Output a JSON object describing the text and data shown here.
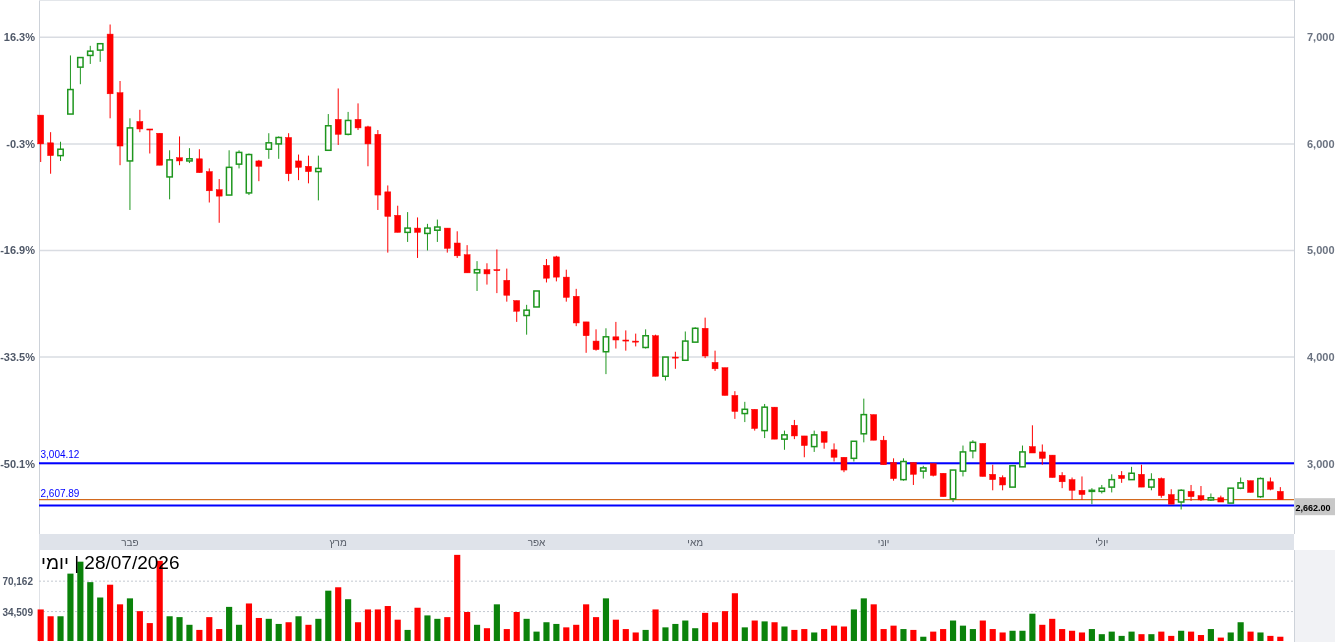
{
  "chart_data": [
    {
      "type": "candlestick",
      "categories": [
        null,
        null,
        null,
        null,
        null,
        null,
        null,
        null,
        null,
        "פבר",
        null,
        null,
        null,
        null,
        null,
        null,
        null,
        null,
        null,
        null,
        null,
        null,
        null,
        null,
        null,
        null,
        null,
        null,
        null,
        null,
        "מרץ",
        null,
        null,
        null,
        null,
        null,
        null,
        null,
        null,
        null,
        null,
        null,
        null,
        null,
        null,
        null,
        null,
        null,
        null,
        null,
        "אפר",
        null,
        null,
        null,
        null,
        null,
        null,
        null,
        null,
        null,
        null,
        null,
        null,
        null,
        null,
        null,
        "מאי",
        null,
        null,
        null,
        null,
        null,
        null,
        null,
        null,
        null,
        null,
        null,
        null,
        null,
        null,
        null,
        null,
        null,
        null,
        "יוני",
        null,
        null,
        null,
        null,
        null,
        null,
        null,
        null,
        null,
        null,
        null,
        null,
        null,
        null,
        null,
        null,
        null,
        null,
        null,
        null,
        null,
        "יולי",
        null,
        null,
        null,
        null,
        null,
        null,
        null,
        null,
        null,
        null,
        null,
        null,
        null,
        null,
        null,
        null,
        null,
        null
      ],
      "ohlc": [
        [
          6270,
          6270,
          5830,
          6000
        ],
        [
          6010,
          6110,
          5720,
          5890
        ],
        [
          5890,
          6020,
          5840,
          5950
        ],
        [
          6280,
          6830,
          6280,
          6510
        ],
        [
          6720,
          6810,
          6560,
          6810
        ],
        [
          6830,
          6920,
          6750,
          6870
        ],
        [
          6880,
          6940,
          6770,
          6940
        ],
        [
          7030,
          7120,
          6240,
          6470
        ],
        [
          6480,
          6590,
          5800,
          5980
        ],
        [
          5840,
          6240,
          5380,
          6150
        ],
        [
          6210,
          6320,
          6110,
          6140
        ],
        [
          6140,
          6140,
          5910,
          6130
        ],
        [
          6100,
          6100,
          5800,
          5800
        ],
        [
          5690,
          5940,
          5480,
          5850
        ],
        [
          5870,
          6070,
          5800,
          5840
        ],
        [
          5840,
          5960,
          5820,
          5860
        ],
        [
          5860,
          5950,
          5730,
          5730
        ],
        [
          5740,
          5770,
          5450,
          5560
        ],
        [
          5570,
          5670,
          5260,
          5510
        ],
        [
          5520,
          5940,
          5520,
          5780
        ],
        [
          5810,
          5940,
          5770,
          5920
        ],
        [
          5540,
          5910,
          5520,
          5900
        ],
        [
          5840,
          5850,
          5650,
          5790
        ],
        [
          5950,
          6100,
          5860,
          6010
        ],
        [
          6000,
          6070,
          5860,
          6060
        ],
        [
          6060,
          6100,
          5650,
          5720
        ],
        [
          5840,
          5900,
          5660,
          5780
        ],
        [
          5790,
          5890,
          5630,
          5740
        ],
        [
          5740,
          5890,
          5470,
          5770
        ],
        [
          5940,
          6280,
          5940,
          6170
        ],
        [
          6230,
          6520,
          5990,
          6090
        ],
        [
          6090,
          6300,
          6080,
          6220
        ],
        [
          6230,
          6380,
          6130,
          6150
        ],
        [
          6160,
          6170,
          5790,
          6000
        ],
        [
          6090,
          6130,
          5380,
          5520
        ],
        [
          5550,
          5610,
          4980,
          5320
        ],
        [
          5330,
          5420,
          5170,
          5170
        ],
        [
          5170,
          5360,
          5080,
          5210
        ],
        [
          5210,
          5310,
          4930,
          5170
        ],
        [
          5160,
          5250,
          5000,
          5210
        ],
        [
          5190,
          5290,
          5080,
          5220
        ],
        [
          5210,
          5210,
          4980,
          5020
        ],
        [
          5070,
          5180,
          4930,
          4950
        ],
        [
          4960,
          5050,
          4790,
          4790
        ],
        [
          4790,
          4900,
          4620,
          4820
        ],
        [
          4820,
          4880,
          4680,
          4780
        ],
        [
          4820,
          5010,
          4600,
          4810
        ],
        [
          4720,
          4830,
          4520,
          4580
        ],
        [
          4530,
          4530,
          4330,
          4430
        ],
        [
          4390,
          4490,
          4210,
          4440
        ],
        [
          4470,
          4620,
          4470,
          4620
        ],
        [
          4860,
          4920,
          4700,
          4740
        ],
        [
          4940,
          4950,
          4710,
          4750
        ],
        [
          4750,
          4820,
          4520,
          4560
        ],
        [
          4570,
          4640,
          4290,
          4320
        ],
        [
          4330,
          4330,
          4040,
          4200
        ],
        [
          4150,
          4260,
          4060,
          4070
        ],
        [
          4050,
          4270,
          3840,
          4190
        ],
        [
          4190,
          4330,
          4080,
          4160
        ],
        [
          4160,
          4250,
          4060,
          4150
        ],
        [
          4150,
          4220,
          4100,
          4140
        ],
        [
          4090,
          4260,
          4080,
          4200
        ],
        [
          4200,
          4210,
          3820,
          3820
        ],
        [
          3820,
          4000,
          3780,
          4000
        ],
        [
          4000,
          4050,
          3890,
          3990
        ],
        [
          3970,
          4240,
          3970,
          4150
        ],
        [
          4140,
          4280,
          4140,
          4270
        ],
        [
          4270,
          4370,
          3990,
          4010
        ],
        [
          3950,
          4060,
          3870,
          3890
        ],
        [
          3900,
          3900,
          3640,
          3640
        ],
        [
          3640,
          3680,
          3420,
          3490
        ],
        [
          3470,
          3580,
          3390,
          3510
        ],
        [
          3510,
          3510,
          3310,
          3330
        ],
        [
          3310,
          3560,
          3240,
          3530
        ],
        [
          3530,
          3530,
          3230,
          3230
        ],
        [
          3230,
          3310,
          3130,
          3270
        ],
        [
          3360,
          3410,
          3230,
          3260
        ],
        [
          3260,
          3260,
          3060,
          3170
        ],
        [
          3160,
          3310,
          3110,
          3270
        ],
        [
          3300,
          3300,
          3140,
          3200
        ],
        [
          3130,
          3190,
          3020,
          3060
        ],
        [
          3060,
          3060,
          2920,
          2940
        ],
        [
          3050,
          3210,
          3020,
          3210
        ],
        [
          3280,
          3610,
          3200,
          3460
        ],
        [
          3460,
          3460,
          3220,
          3220
        ],
        [
          3220,
          3260,
          2990,
          2990
        ],
        [
          3010,
          3050,
          2840,
          2860
        ],
        [
          2850,
          3050,
          2840,
          3020
        ],
        [
          3010,
          3010,
          2800,
          2900
        ],
        [
          2930,
          2980,
          2860,
          2960
        ],
        [
          3000,
          3000,
          2880,
          2890
        ],
        [
          2910,
          2910,
          2690,
          2690
        ],
        [
          2670,
          2940,
          2640,
          2940
        ],
        [
          2930,
          3170,
          2880,
          3110
        ],
        [
          3120,
          3220,
          3050,
          3200
        ],
        [
          3190,
          3190,
          2880,
          2880
        ],
        [
          2900,
          2990,
          2750,
          2850
        ],
        [
          2870,
          2890,
          2750,
          2800
        ],
        [
          2780,
          2980,
          2780,
          2980
        ],
        [
          2970,
          3170,
          2970,
          3110
        ],
        [
          3160,
          3360,
          3100,
          3100
        ],
        [
          3110,
          3180,
          2990,
          3050
        ],
        [
          3080,
          3080,
          2870,
          2870
        ],
        [
          2890,
          2920,
          2770,
          2830
        ],
        [
          2850,
          2870,
          2660,
          2750
        ],
        [
          2750,
          2880,
          2660,
          2710
        ],
        [
          2740,
          2770,
          2620,
          2750
        ],
        [
          2740,
          2800,
          2720,
          2770
        ],
        [
          2780,
          2900,
          2730,
          2850
        ],
        [
          2890,
          2930,
          2820,
          2860
        ],
        [
          2850,
          2970,
          2850,
          2910
        ],
        [
          2900,
          2990,
          2780,
          2780
        ],
        [
          2780,
          2910,
          2750,
          2850
        ],
        [
          2860,
          2870,
          2680,
          2700
        ],
        [
          2710,
          2760,
          2620,
          2620
        ],
        [
          2640,
          2760,
          2570,
          2750
        ],
        [
          2740,
          2800,
          2650,
          2690
        ],
        [
          2700,
          2790,
          2650,
          2660
        ],
        [
          2660,
          2720,
          2650,
          2680
        ],
        [
          2680,
          2700,
          2640,
          2640
        ],
        [
          2630,
          2770,
          2630,
          2770
        ],
        [
          2770,
          2870,
          2760,
          2820
        ],
        [
          2840,
          2840,
          2730,
          2730
        ],
        [
          2690,
          2870,
          2680,
          2860
        ],
        [
          2830,
          2870,
          2750,
          2760
        ],
        [
          2740,
          2780,
          2662,
          2662
        ]
      ],
      "colors": [
        "#ff0000",
        "#ff0000",
        "#1e961e",
        "#1e961e",
        "#1e961e",
        "#1e961e",
        "#1e961e",
        "#ff0000",
        "#ff0000",
        "#1e961e",
        "#ff0000",
        "#ff0000",
        "#ff0000",
        "#1e961e",
        "#ff0000",
        "#1e961e",
        "#ff0000",
        "#ff0000",
        "#ff0000",
        "#1e961e",
        "#1e961e",
        "#1e961e",
        "#ff0000",
        "#1e961e",
        "#1e961e",
        "#ff0000",
        "#ff0000",
        "#ff0000",
        "#1e961e",
        "#1e961e",
        "#ff0000",
        "#1e961e",
        "#ff0000",
        "#ff0000",
        "#ff0000",
        "#ff0000",
        "#ff0000",
        "#1e961e",
        "#ff0000",
        "#1e961e",
        "#1e961e",
        "#ff0000",
        "#ff0000",
        "#ff0000",
        "#1e961e",
        "#ff0000",
        "#ff0000",
        "#ff0000",
        "#ff0000",
        "#1e961e",
        "#1e961e",
        "#ff0000",
        "#ff0000",
        "#ff0000",
        "#ff0000",
        "#ff0000",
        "#ff0000",
        "#1e961e",
        "#ff0000",
        "#ff0000",
        "#ff0000",
        "#1e961e",
        "#ff0000",
        "#1e961e",
        "#ff0000",
        "#1e961e",
        "#1e961e",
        "#ff0000",
        "#ff0000",
        "#ff0000",
        "#ff0000",
        "#1e961e",
        "#ff0000",
        "#1e961e",
        "#ff0000",
        "#1e961e",
        "#ff0000",
        "#ff0000",
        "#1e961e",
        "#ff0000",
        "#ff0000",
        "#ff0000",
        "#1e961e",
        "#1e961e",
        "#ff0000",
        "#ff0000",
        "#ff0000",
        "#1e961e",
        "#ff0000",
        "#1e961e",
        "#ff0000",
        "#ff0000",
        "#1e961e",
        "#1e961e",
        "#1e961e",
        "#ff0000",
        "#ff0000",
        "#ff0000",
        "#1e961e",
        "#1e961e",
        "#ff0000",
        "#ff0000",
        "#ff0000",
        "#ff0000",
        "#ff0000",
        "#ff0000",
        "#1e961e",
        "#1e961e",
        "#1e961e",
        "#ff0000",
        "#1e961e",
        "#ff0000",
        "#1e961e",
        "#ff0000",
        "#ff0000",
        "#1e961e",
        "#ff0000",
        "#ff0000",
        "#1e961e",
        "#ff0000",
        "#1e961e",
        "#1e961e",
        "#ff0000",
        "#1e961e",
        "#ff0000",
        "#ff0000"
      ],
      "ylim": [
        2340,
        7350
      ],
      "yticks": [
        {
          "value": 3000,
          "label": "3,000"
        },
        {
          "value": 4000,
          "label": "4,000"
        },
        {
          "value": 5000,
          "label": "5,000"
        },
        {
          "value": 6000,
          "label": "6,000"
        },
        {
          "value": 7000,
          "label": "7,000"
        }
      ],
      "y2lim": [
        -61.056,
        22.11
      ],
      "y2ticks": [
        {
          "value": -50.1,
          "label": "-50.1%"
        },
        {
          "value": -33.5,
          "label": "-33.5%"
        },
        {
          "value": -16.9,
          "label": "-16.9%"
        },
        {
          "value": -0.3,
          "label": "-0.3%"
        },
        {
          "value": 16.3,
          "label": "16.3%"
        }
      ],
      "grid": "y",
      "ref_lines": [
        {
          "axis": "y",
          "value": 3004.12,
          "label": "3,004.12",
          "color": "#0000ff"
        },
        {
          "axis": "y",
          "value": 2607.89,
          "label": "2,607.89",
          "color": "#0000ff"
        },
        {
          "axis": "y",
          "value": 2662,
          "label": "2,662.00",
          "color": "#d2691e"
        }
      ]
    },
    {
      "type": "bar",
      "title": "28/07/2026 | יומי",
      "categories": [
        null,
        null,
        null,
        null,
        null,
        null,
        null,
        null,
        null,
        null,
        null,
        null,
        null,
        null,
        null,
        null,
        null,
        null,
        null,
        null,
        null,
        null,
        null,
        null,
        null,
        null,
        null,
        null,
        null,
        null,
        null,
        null,
        null,
        null,
        null,
        null,
        null,
        null,
        null,
        null,
        null,
        null,
        null,
        null,
        null,
        null,
        null,
        null,
        null,
        null,
        null,
        null,
        null,
        null,
        null,
        null,
        null,
        null,
        null,
        null,
        null,
        null,
        null,
        null,
        null,
        null,
        null,
        null,
        null,
        null,
        null,
        null,
        null,
        null,
        null,
        null,
        null,
        null,
        null,
        null,
        null,
        null,
        null,
        null,
        null,
        null,
        null,
        null,
        null,
        null,
        null,
        null,
        null,
        null,
        null,
        null,
        null,
        null,
        null,
        null,
        null,
        null,
        null,
        null,
        null,
        null,
        null,
        null,
        null,
        null,
        null,
        null,
        null,
        null,
        null,
        null,
        null,
        null,
        null,
        null,
        null,
        null,
        null,
        null,
        null,
        null
      ],
      "values": [
        37000,
        29000,
        29000,
        79000,
        93000,
        69000,
        51000,
        66000,
        43000,
        50000,
        35000,
        21000,
        94000,
        29000,
        28000,
        19000,
        13000,
        28000,
        14000,
        40000,
        19000,
        44000,
        27000,
        26000,
        20000,
        22000,
        29000,
        19000,
        26000,
        59000,
        63000,
        49000,
        22000,
        37000,
        37000,
        41000,
        25000,
        13000,
        39000,
        30000,
        26000,
        28000,
        101000,
        34000,
        19000,
        15000,
        43000,
        14000,
        34000,
        26000,
        11000,
        22000,
        20000,
        16000,
        19000,
        43000,
        28000,
        50000,
        25000,
        14000,
        10000,
        13000,
        37000,
        16000,
        20000,
        24000,
        15000,
        33000,
        22000,
        35000,
        56000,
        16000,
        24000,
        23000,
        22000,
        17000,
        13000,
        14000,
        10000,
        14000,
        18000,
        17000,
        37000,
        50000,
        43000,
        14000,
        18000,
        14000,
        13000,
        5000,
        11000,
        14000,
        24000,
        18000,
        14000,
        24000,
        14000,
        10000,
        12000,
        12000,
        32000,
        19000,
        26000,
        14000,
        12000,
        10000,
        14000,
        8000,
        11000,
        6000,
        11000,
        8000,
        8000,
        11000,
        6000,
        12000,
        11000,
        7000,
        14000,
        4000,
        10000,
        22000,
        11000,
        10000,
        6000,
        5000
      ],
      "colors": [
        "#ff0000",
        "#ff0000",
        "#0a820a",
        "#0a820a",
        "#0a820a",
        "#0a820a",
        "#0a820a",
        "#ff0000",
        "#ff0000",
        "#0a820a",
        "#ff0000",
        "#ff0000",
        "#ff0000",
        "#0a820a",
        "#0a820a",
        "#0a820a",
        "#ff0000",
        "#ff0000",
        "#ff0000",
        "#0a820a",
        "#0a820a",
        "#ff0000",
        "#ff0000",
        "#0a820a",
        "#0a820a",
        "#ff0000",
        "#0a820a",
        "#ff0000",
        "#0a820a",
        "#0a820a",
        "#ff0000",
        "#0a820a",
        "#ff0000",
        "#ff0000",
        "#ff0000",
        "#ff0000",
        "#ff0000",
        "#0a820a",
        "#ff0000",
        "#0a820a",
        "#0a820a",
        "#ff0000",
        "#ff0000",
        "#ff0000",
        "#0a820a",
        "#ff0000",
        "#0a820a",
        "#ff0000",
        "#ff0000",
        "#0a820a",
        "#0a820a",
        "#0a820a",
        "#0a820a",
        "#ff0000",
        "#ff0000",
        "#ff0000",
        "#ff0000",
        "#0a820a",
        "#ff0000",
        "#ff0000",
        "#ff0000",
        "#0a820a",
        "#ff0000",
        "#0a820a",
        "#0a820a",
        "#0a820a",
        "#0a820a",
        "#ff0000",
        "#ff0000",
        "#ff0000",
        "#ff0000",
        "#0a820a",
        "#ff0000",
        "#0a820a",
        "#ff0000",
        "#0a820a",
        "#ff0000",
        "#ff0000",
        "#0a820a",
        "#ff0000",
        "#ff0000",
        "#ff0000",
        "#0a820a",
        "#0a820a",
        "#ff0000",
        "#ff0000",
        "#ff0000",
        "#0a820a",
        "#ff0000",
        "#0a820a",
        "#ff0000",
        "#ff0000",
        "#0a820a",
        "#0a820a",
        "#0a820a",
        "#ff0000",
        "#ff0000",
        "#ff0000",
        "#0a820a",
        "#0a820a",
        "#0a820a",
        "#ff0000",
        "#ff0000",
        "#ff0000",
        "#ff0000",
        "#ff0000",
        "#0a820a",
        "#0a820a",
        "#0a820a",
        "#0a820a",
        "#0a820a",
        "#ff0000",
        "#0a820a",
        "#ff0000",
        "#ff0000",
        "#0a820a",
        "#ff0000",
        "#ff0000",
        "#0a820a",
        "#ff0000",
        "#0a820a",
        "#0a820a",
        "#ff0000",
        "#0a820a",
        "#ff0000",
        "#ff0000"
      ],
      "ylim": [
        0,
        106700
      ],
      "yticks": [
        {
          "value": 34509,
          "label": "34,509"
        },
        {
          "value": 70162,
          "label": "70,162"
        }
      ],
      "grid": "y",
      "tick_labels": "y"
    }
  ]
}
